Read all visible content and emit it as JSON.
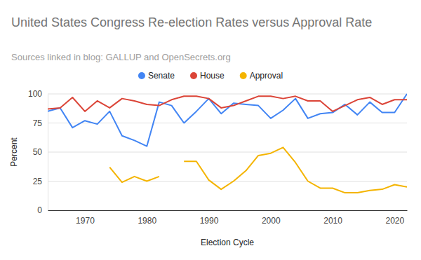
{
  "chart_data": {
    "type": "line",
    "title": "United States Congress Re-election Rates versus Approval Rate",
    "subtitle": "Sources linked in blog: GALLUP and OpenSecrets.org",
    "x_label": "Election Cycle",
    "y_label": "Percent",
    "x": [
      1964,
      1966,
      1968,
      1970,
      1972,
      1974,
      1976,
      1978,
      1980,
      1982,
      1984,
      1986,
      1988,
      1990,
      1992,
      1994,
      1996,
      1998,
      2000,
      2002,
      2004,
      2006,
      2008,
      2010,
      2012,
      2014,
      2016,
      2018,
      2020,
      2022
    ],
    "series": [
      {
        "name": "Senate",
        "color": "#4285f4",
        "values": [
          85,
          88,
          71,
          77,
          74,
          85,
          64,
          60,
          55,
          93,
          90,
          75,
          85,
          96,
          83,
          92,
          91,
          90,
          79,
          86,
          96,
          79,
          83,
          84,
          91,
          82,
          93,
          84,
          84,
          100
        ]
      },
      {
        "name": "House",
        "color": "#db4437",
        "values": [
          87,
          88,
          97,
          85,
          94,
          88,
          96,
          94,
          91,
          90,
          95,
          98,
          98,
          96,
          88,
          90,
          94,
          98,
          98,
          96,
          98,
          94,
          94,
          85,
          90,
          95,
          97,
          91,
          95,
          95
        ]
      },
      {
        "name": "Approval",
        "color": "#f4b400",
        "values": [
          null,
          null,
          null,
          null,
          null,
          37,
          24,
          29,
          25,
          29,
          null,
          42,
          42,
          26,
          18,
          25,
          34,
          47,
          49,
          54,
          41,
          25,
          19,
          19,
          15,
          15,
          17,
          18,
          22,
          20
        ]
      }
    ],
    "xlim": [
      1964,
      2022
    ],
    "xticks": [
      1970,
      1980,
      1990,
      2000,
      2010,
      2020
    ],
    "ylim": [
      0,
      100
    ],
    "yticks": [
      0,
      25,
      50,
      75,
      100
    ],
    "grid": true,
    "legend": "top"
  }
}
